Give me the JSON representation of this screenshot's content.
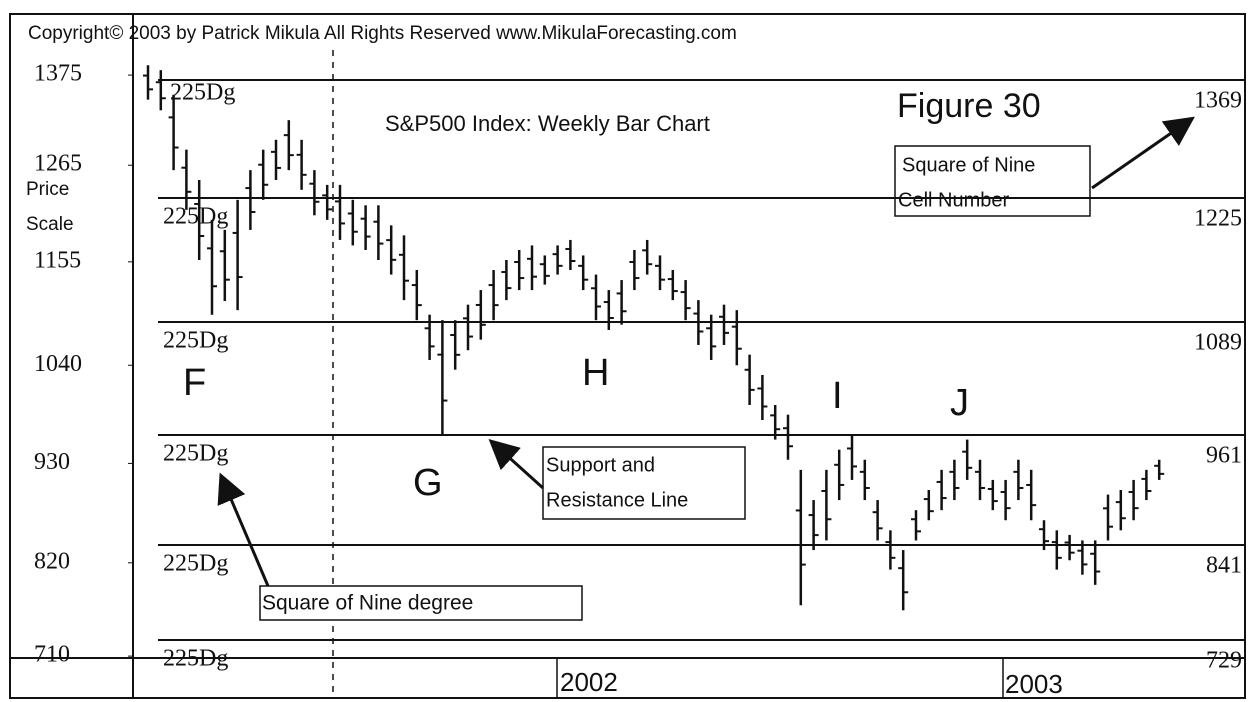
{
  "chart_data": {
    "type": "hlbar",
    "copyright": "Copyright© 2003 by Patrick Mikula All Rights Reserved  www.MikulaForecasting.com",
    "title": "S&P500 Index:  Weekly Bar Chart",
    "figure": "Figure 30",
    "ylabel": [
      "Price",
      "Scale"
    ],
    "yticks": [
      1375,
      1265,
      1155,
      1040,
      930,
      820,
      710
    ],
    "levels": [
      1369,
      1225,
      1089,
      961,
      841,
      729
    ],
    "level_label": "225Dg",
    "xlabels": [
      "2002",
      "2003"
    ],
    "color": "#111111",
    "annotations": {
      "cell": [
        "Square of Nine",
        "Cell Number"
      ],
      "support": [
        "Support and",
        "Resistance Line"
      ],
      "degree": "Square of Nine degree",
      "letters": [
        "F",
        "G",
        "H",
        "I",
        "J"
      ]
    },
    "high": [
      1387,
      1381,
      1351,
      1284,
      1247,
      1201,
      1190,
      1223,
      1259,
      1284,
      1296,
      1320,
      1296,
      1259,
      1241,
      1241,
      1223,
      1217,
      1217,
      1195,
      1184,
      1146,
      1097,
      1091,
      1091,
      1108,
      1124,
      1146,
      1157,
      1168,
      1173,
      1162,
      1173,
      1179,
      1162,
      1141,
      1124,
      1135,
      1168,
      1179,
      1162,
      1146,
      1135,
      1113,
      1097,
      1108,
      1102,
      1052,
      1029,
      995,
      984,
      923,
      890,
      923,
      945,
      961,
      934,
      890,
      857,
      835,
      879,
      901,
      923,
      934,
      956,
      934,
      912,
      912,
      934,
      923,
      868,
      857,
      852,
      846,
      846,
      896,
      901,
      912,
      923,
      934
    ],
    "low": [
      1345,
      1332,
      1259,
      1212,
      1157,
      1097,
      1112,
      1102,
      1190,
      1223,
      1247,
      1259,
      1235,
      1206,
      1201,
      1179,
      1173,
      1168,
      1157,
      1141,
      1113,
      1091,
      1046,
      961,
      1035,
      1057,
      1069,
      1091,
      1113,
      1124,
      1124,
      1130,
      1141,
      1146,
      1124,
      1091,
      1080,
      1086,
      1124,
      1141,
      1124,
      1113,
      1091,
      1063,
      1046,
      1063,
      1040,
      995,
      978,
      956,
      934,
      770,
      835,
      846,
      890,
      912,
      890,
      846,
      812,
      764,
      846,
      868,
      879,
      890,
      912,
      890,
      879,
      868,
      890,
      868,
      835,
      812,
      823,
      806,
      794,
      846,
      857,
      868,
      890,
      912
    ]
  }
}
